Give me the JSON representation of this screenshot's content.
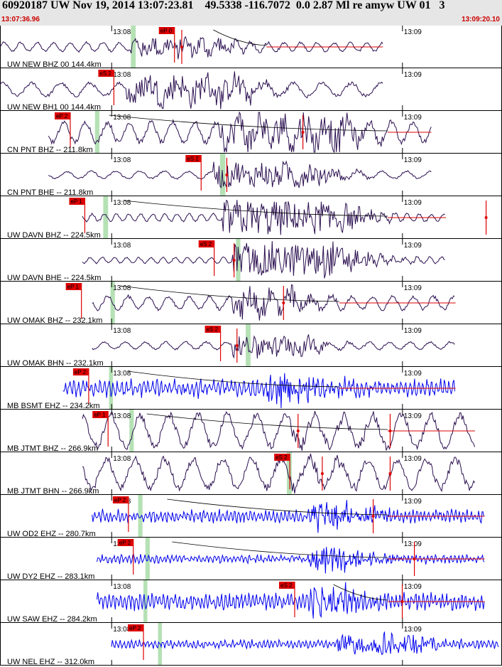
{
  "header": {
    "title": "60920187 UW Nov 19, 2014 13:07:23.81    49.5338 -116.7072  0.0 2.87 Ml re amyw UW 01   3",
    "start_time": "13:07:36.96",
    "end_time": "13:09:20.10"
  },
  "colors": {
    "header_bg": "#e6e6e6",
    "trace_dark": "#2b1050",
    "trace_blue": "#0000ee",
    "pick": "#dd0000",
    "theoretical_window": "#a8dca8",
    "time_text": "#cc0000"
  },
  "chart_data": {
    "type": "line",
    "x_unit": "seconds from 13:07:36.96",
    "xlim": [
      0,
      103.14
    ],
    "time_ticks": [
      {
        "label": "13:08",
        "t": 23.04
      },
      {
        "label": "13:09",
        "t": 83.04
      }
    ],
    "traces": [
      {
        "label": "UW NEW BHZ 00 144.4km",
        "color_key": "dark",
        "pick": "eP 0",
        "pick_t": 36.0,
        "green": [
          27.0,
          28.0
        ],
        "start": 0,
        "end": 79,
        "amp": 6,
        "burst": [
          27,
          45,
          5
        ],
        "burst_amp": 12,
        "period": 3.4,
        "coda": true,
        "red_marks": [
          37.5
        ]
      },
      {
        "label": "UW NEW BH1 00 144.4km",
        "color_key": "dark",
        "pick": "eS 2",
        "pick_t": 23.5,
        "green": [],
        "start": 0,
        "end": 79,
        "amp": 9,
        "burst": [
          26,
          50,
          5
        ],
        "burst_amp": 18,
        "period": 6.0,
        "coda": false,
        "red_marks": []
      },
      {
        "label": "CN PNT BHZ -- 211.8km",
        "color_key": "dark",
        "pick": "eP 2",
        "pick_t": 14.5,
        "green": [
          19.6,
          20.5
        ],
        "start": 10,
        "end": 89,
        "amp": 14,
        "burst": [
          45,
          70,
          5
        ],
        "burst_amp": 22,
        "period": 4.5,
        "coda": true,
        "red_marks": [
          62.5
        ]
      },
      {
        "label": "CN PNT BHE -- 211.8km",
        "color_key": "dark",
        "pick": "eS 2",
        "pick_t": 41.5,
        "green": [
          45.4,
          46.5
        ],
        "start": 10,
        "end": 89,
        "amp": 5,
        "burst": [
          44,
          65,
          5
        ],
        "burst_amp": 16,
        "period": 5.0,
        "coda": false,
        "red_marks": [
          46.8
        ]
      },
      {
        "label": "UW DAVN BHZ -- 224.5km",
        "color_key": "dark",
        "pick": "eP 1",
        "pick_t": 17.5,
        "green": [
          21.3,
          22.3
        ],
        "start": 17,
        "end": 92,
        "amp": 5,
        "burst": [
          46,
          70,
          6
        ],
        "burst_amp": 22,
        "period": 2.5,
        "coda": true,
        "red_marks": [
          100.3
        ]
      },
      {
        "label": "UW DAVN BHE -- 224.5km",
        "color_key": "dark",
        "pick": "eS 2",
        "pick_t": 44.2,
        "green": [
          48.7,
          49.6
        ],
        "start": 17,
        "end": 92,
        "amp": 4,
        "burst": [
          48,
          70,
          6
        ],
        "burst_amp": 24,
        "period": 2.5,
        "coda": false,
        "red_marks": [
          48.3
        ]
      },
      {
        "label": "UW OMAK BHZ -- 232.1km",
        "color_key": "dark",
        "pick": "eP 1",
        "pick_t": 16.8,
        "green": [
          22.8,
          23.7
        ],
        "start": 19,
        "end": 94,
        "amp": 9,
        "burst": [
          48,
          60,
          5
        ],
        "burst_amp": 18,
        "period": 4.2,
        "coda": true,
        "red_marks": [
          58.5
        ]
      },
      {
        "label": "UW OMAK BHN -- 232.1km",
        "color_key": "dark",
        "pick": "eS 2",
        "pick_t": 45.5,
        "green": [
          50.7,
          51.7
        ],
        "start": 19,
        "end": 94,
        "amp": 5,
        "burst": [
          48,
          62,
          5
        ],
        "burst_amp": 16,
        "period": 4.2,
        "coda": false,
        "red_marks": [
          48.9
        ]
      },
      {
        "label": "MB BSMT EHZ -- 234.2km",
        "color_key": "blue",
        "pick": "eP 2",
        "pick_t": 18.3,
        "green": [
          22.5,
          23.3
        ],
        "start": 13,
        "end": 94,
        "amp": 8,
        "burst": [
          55,
          60,
          8
        ],
        "burst_amp": 20,
        "period": 0.9,
        "coda": true,
        "red_marks": []
      },
      {
        "label": "MB JTMT BHZ -- 266.9km",
        "color_key": "dark",
        "pick": "eP 1",
        "pick_t": 22.3,
        "green": [
          26.7,
          27.6
        ],
        "start": 17,
        "end": 98,
        "amp": 22,
        "burst": [
          60,
          70,
          6
        ],
        "burst_amp": 8,
        "period": 6.0,
        "coda": true,
        "red_marks": [
          61.5,
          80.5
        ]
      },
      {
        "label": "MB JTMT BHN -- 266.9km",
        "color_key": "dark",
        "pick": "eS 2",
        "pick_t": 59.8,
        "green": [
          59.2,
          60.2
        ],
        "start": 17,
        "end": 98,
        "amp": 20,
        "burst": [
          60,
          70,
          6
        ],
        "burst_amp": 8,
        "period": 6.0,
        "coda": false,
        "red_marks": [
          66.5,
          80.5
        ]
      },
      {
        "label": "UW OD2 EHZ -- 280.7km",
        "color_key": "blue",
        "pick": "eP 2",
        "pick_t": 26.5,
        "green": [
          28.5,
          29.4
        ],
        "start": 19,
        "end": 100,
        "amp": 6,
        "burst": [
          64,
          70,
          7
        ],
        "burst_amp": 20,
        "period": 0.8,
        "coda": true,
        "red_marks": [
          77.0
        ]
      },
      {
        "label": "UW DY2 EHZ -- 283.1km",
        "color_key": "blue",
        "pick": "eP 2",
        "pick_t": 27.5,
        "green": [
          30.0,
          30.9
        ],
        "start": 20,
        "end": 100,
        "amp": 4,
        "burst": [
          64,
          70,
          7
        ],
        "burst_amp": 16,
        "period": 0.8,
        "coda": true,
        "red_marks": [
          85.5
        ]
      },
      {
        "label": "UW SAW EHZ -- 284.2km",
        "color_key": "blue",
        "pick": "eS 2",
        "pick_t": 60.8,
        "green": [
          29.6,
          30.4
        ],
        "start": 20,
        "end": 100,
        "amp": 8,
        "burst": [
          64,
          70,
          7
        ],
        "burst_amp": 18,
        "period": 0.8,
        "coda": true,
        "red_marks": [
          83.0
        ]
      },
      {
        "label": "UW NEL EHZ -- 312.0km",
        "color_key": "blue",
        "pick": "eP 2",
        "pick_t": 29.6,
        "green": [
          32.6,
          33.4
        ],
        "start": 23,
        "end": 103,
        "amp": 4,
        "burst": [
          69,
          85,
          6
        ],
        "burst_amp": 14,
        "period": 0.8,
        "coda": false,
        "red_marks": []
      }
    ]
  }
}
